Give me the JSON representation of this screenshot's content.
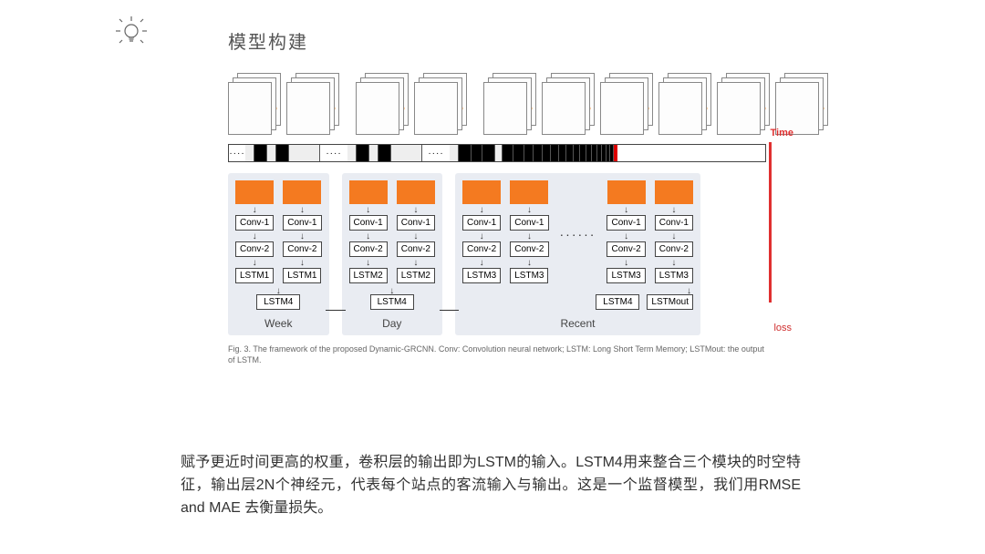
{
  "title": "模型构建",
  "time_label": "Time",
  "loss_label": "loss",
  "timeline": {
    "border_color": "#444444",
    "cells": [
      {
        "type": "dots",
        "w": 18
      },
      {
        "type": "faint",
        "w": 10
      },
      {
        "type": "black",
        "w": 14
      },
      {
        "type": "faint",
        "w": 10
      },
      {
        "type": "black",
        "w": 14
      },
      {
        "type": "faint",
        "w": 34
      },
      {
        "type": "dots",
        "w": 30
      },
      {
        "type": "faint",
        "w": 10
      },
      {
        "type": "black",
        "w": 14
      },
      {
        "type": "faint",
        "w": 10
      },
      {
        "type": "black",
        "w": 14
      },
      {
        "type": "faint",
        "w": 34
      },
      {
        "type": "dots",
        "w": 30
      },
      {
        "type": "faint",
        "w": 10
      },
      {
        "type": "black",
        "w": 14
      },
      {
        "type": "black",
        "w": 12
      },
      {
        "type": "black",
        "w": 14
      },
      {
        "type": "faint",
        "w": 8
      },
      {
        "type": "black",
        "w": 12
      },
      {
        "type": "black",
        "w": 12
      },
      {
        "type": "black",
        "w": 10
      },
      {
        "type": "black",
        "w": 10
      },
      {
        "type": "black",
        "w": 9
      },
      {
        "type": "black",
        "w": 9
      },
      {
        "type": "black",
        "w": 8
      },
      {
        "type": "black",
        "w": 8
      },
      {
        "type": "black",
        "w": 7
      },
      {
        "type": "black",
        "w": 7
      },
      {
        "type": "black",
        "w": 6
      },
      {
        "type": "black",
        "w": 6
      },
      {
        "type": "black",
        "w": 5
      },
      {
        "type": "black",
        "w": 5
      },
      {
        "type": "black",
        "w": 4
      },
      {
        "type": "black",
        "w": 4
      }
    ]
  },
  "graph_colors": {
    "edge": "#888888",
    "nodes": [
      "#f4b400",
      "#e03030",
      "#9b30b0",
      "#2aa8e0",
      "#30a030",
      "#ff9030"
    ]
  },
  "modules": [
    {
      "label": "Week",
      "cols": 2,
      "stack": [
        "Conv-1",
        "Conv-2",
        "LSTM1"
      ],
      "merge": "LSTM4"
    },
    {
      "label": "Day",
      "cols": 2,
      "stack": [
        "Conv-1",
        "Conv-2",
        "LSTM2"
      ],
      "merge": "LSTM4"
    },
    {
      "label": "Recent",
      "cols": 4,
      "ellipsis": true,
      "stack": [
        "Conv-1",
        "Conv-2",
        "LSTM3"
      ],
      "merge": "LSTM4",
      "extra": "LSTMout"
    }
  ],
  "node_style": {
    "orange": "#f47a20",
    "module_bg": "#e9ecf2",
    "border": "#444444",
    "font_size": 10
  },
  "caption": "Fig. 3. The framework of the proposed Dynamic-GRCNN. Conv: Convolution neural network; LSTM: Long Short Term Memory; LSTMout: the output of LSTM.",
  "body": "赋予更近时间更高的权重，卷积层的输出即为LSTM的输入。LSTM4用来整合三个模块的时空特征，输出层2N个神经元，代表每个站点的客流输入与输出。这是一个监督模型，我们用RMSE and MAE 去衡量损失。"
}
